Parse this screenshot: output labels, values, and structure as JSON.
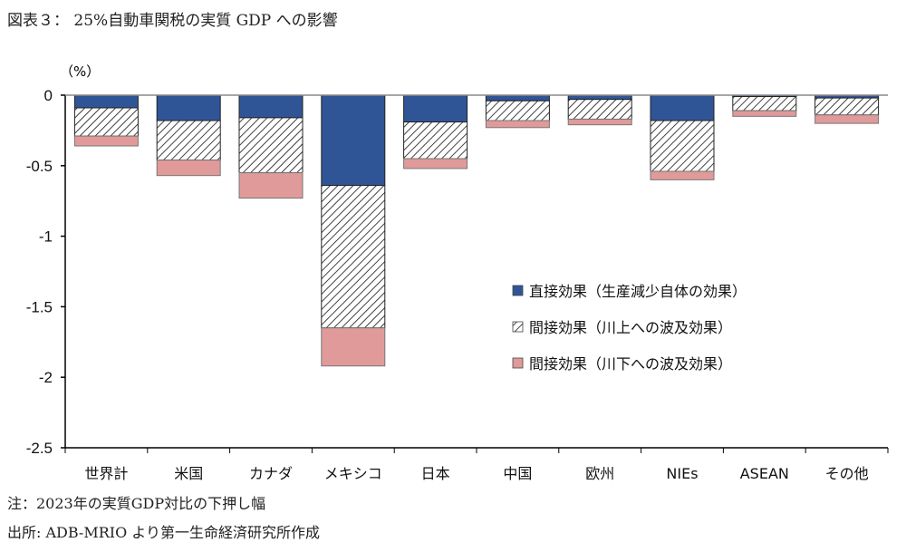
{
  "title": "図表３： 25%自動車関税の実質 GDP への影響",
  "note": "注：2023年の実質GDP対比の下押し幅",
  "source": "出所: ADB-MRIO より第一生命経済研究所作成",
  "chart_data": {
    "type": "bar",
    "stacked": true,
    "unit_label": "（%）",
    "ylim": [
      -2.5,
      0
    ],
    "yticks": [
      0,
      -0.5,
      -1,
      -1.5,
      -2,
      -2.5
    ],
    "ytick_labels": [
      "0",
      "-0.5",
      "-1",
      "-1.5",
      "-2",
      "-2.5"
    ],
    "grid": false,
    "legend_position": "center-right",
    "categories": [
      "世界計",
      "米国",
      "カナダ",
      "メキシコ",
      "日本",
      "中国",
      "欧州",
      "NIEs",
      "ASEAN",
      "その他"
    ],
    "series": [
      {
        "name": "直接効果（生産減少自体の効果）",
        "color": "#2F5597",
        "pattern": "solid",
        "values": [
          -0.09,
          -0.18,
          -0.16,
          -0.64,
          -0.19,
          -0.04,
          -0.03,
          -0.18,
          -0.01,
          -0.02
        ]
      },
      {
        "name": "間接効果（川上への波及効果）",
        "color": "#000000",
        "pattern": "hatch",
        "values": [
          -0.2,
          -0.28,
          -0.39,
          -1.01,
          -0.26,
          -0.14,
          -0.14,
          -0.36,
          -0.1,
          -0.12
        ]
      },
      {
        "name": "間接効果（川下への波及効果）",
        "color": "#E09A9A",
        "pattern": "solid",
        "values": [
          -0.07,
          -0.11,
          -0.18,
          -0.27,
          -0.07,
          -0.05,
          -0.04,
          -0.06,
          -0.04,
          -0.06
        ]
      }
    ]
  }
}
